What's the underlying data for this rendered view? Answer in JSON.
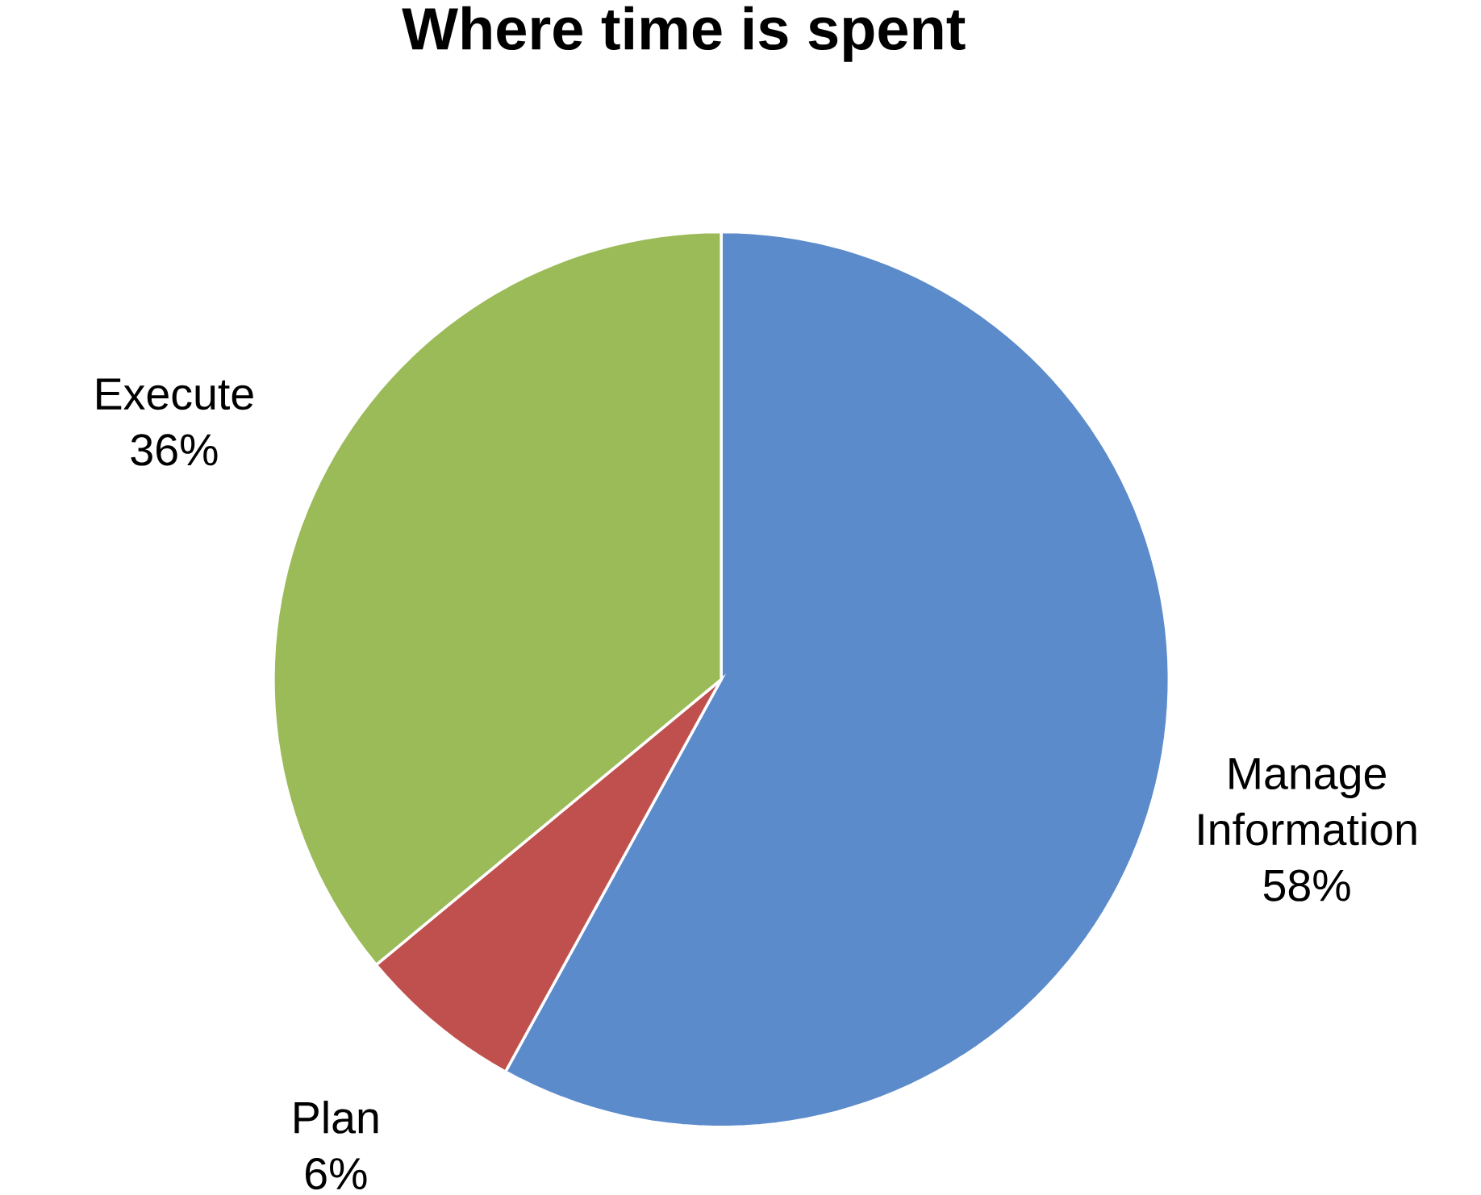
{
  "chart_data": {
    "type": "pie",
    "title": "Where time is spent",
    "categories": [
      "Manage Information",
      "Plan",
      "Execute"
    ],
    "values": [
      58,
      6,
      36
    ],
    "value_labels": [
      "58%",
      "6%",
      "36%"
    ],
    "colors": [
      "#5b8bcb",
      "#c0504d",
      "#9bbb59"
    ]
  }
}
